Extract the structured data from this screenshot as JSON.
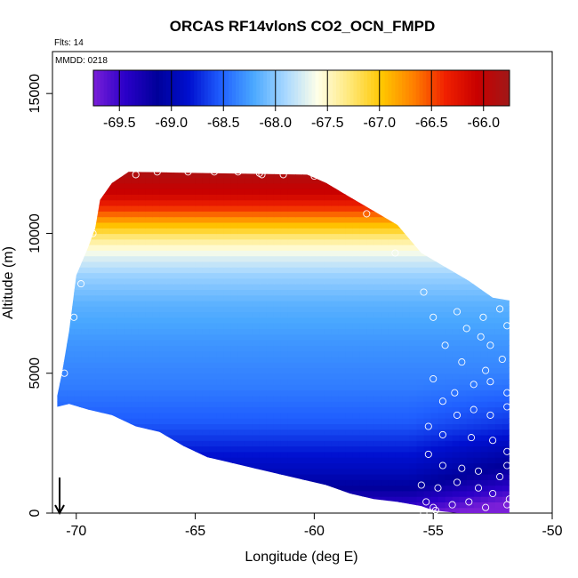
{
  "chart_data": {
    "type": "heatmap",
    "title": "ORCAS RF14vlonS CO2_OCN_FMPD",
    "annotations": {
      "flights": "Flts: 14",
      "date": "MMDD: 0218"
    },
    "xlabel": "Longitude (deg E)",
    "ylabel": "Altitude (m)",
    "xlim": [
      -71,
      -50
    ],
    "ylim": [
      0,
      16500
    ],
    "x_ticks": [
      -70,
      -65,
      -60,
      -55,
      -50
    ],
    "x_tick_labels": [
      "-70",
      "-65",
      "-60",
      "-55",
      "-50"
    ],
    "y_ticks": [
      0,
      5000,
      10000,
      15000
    ],
    "y_tick_labels": [
      "0",
      "5000",
      "10000",
      "15000"
    ],
    "colorbar": {
      "range": [
        -69.75,
        -65.75
      ],
      "ticks": [
        -69.5,
        -69.0,
        -68.5,
        -68.0,
        -67.5,
        -67.0,
        -66.5,
        -66.0
      ],
      "tick_labels": [
        "-69.5",
        "-69.0",
        "-68.5",
        "-68.0",
        "-67.5",
        "-67.0",
        "-66.5",
        "-66.0"
      ],
      "colors": [
        "#7a1fd8",
        "#2a00c8",
        "#00009a",
        "#0010d0",
        "#2060ff",
        "#4aa8ff",
        "#a8d8ff",
        "#ffffe8",
        "#ffe87a",
        "#ffc800",
        "#ff8000",
        "#f02000",
        "#c80000",
        "#a01818"
      ]
    },
    "value_vs_altitude": [
      {
        "alt": 0,
        "value": -69.6
      },
      {
        "alt": 500,
        "value": -69.35
      },
      {
        "alt": 1000,
        "value": -69.1
      },
      {
        "alt": 1500,
        "value": -68.95
      },
      {
        "alt": 2200,
        "value": -68.8
      },
      {
        "alt": 3200,
        "value": -68.55
      },
      {
        "alt": 4500,
        "value": -68.4
      },
      {
        "alt": 6000,
        "value": -68.3
      },
      {
        "alt": 7500,
        "value": -68.15
      },
      {
        "alt": 8500,
        "value": -67.95
      },
      {
        "alt": 9200,
        "value": -67.7
      },
      {
        "alt": 9800,
        "value": -67.35
      },
      {
        "alt": 10300,
        "value": -66.95
      },
      {
        "alt": 10800,
        "value": -66.5
      },
      {
        "alt": 11400,
        "value": -66.1
      },
      {
        "alt": 12200,
        "value": -65.85
      }
    ],
    "coverage_boundary": [
      [
        -70.8,
        3800
      ],
      [
        -70.3,
        3900
      ],
      [
        -69.5,
        3700
      ],
      [
        -68.5,
        3500
      ],
      [
        -67.5,
        3100
      ],
      [
        -66.5,
        2900
      ],
      [
        -65.5,
        2400
      ],
      [
        -64.5,
        2000
      ],
      [
        -63.5,
        1800
      ],
      [
        -62.5,
        1600
      ],
      [
        -61.5,
        1400
      ],
      [
        -60.5,
        1200
      ],
      [
        -59.5,
        1000
      ],
      [
        -58.5,
        700
      ],
      [
        -57.5,
        500
      ],
      [
        -56.5,
        400
      ],
      [
        -55.5,
        250
      ],
      [
        -55.0,
        100
      ],
      [
        -54.0,
        0
      ],
      [
        -51.8,
        0
      ],
      [
        -51.8,
        7600
      ],
      [
        -52.5,
        7700
      ],
      [
        -53.5,
        8300
      ],
      [
        -54.5,
        8800
      ],
      [
        -55.5,
        9300
      ],
      [
        -56.0,
        9800
      ],
      [
        -56.5,
        10300
      ],
      [
        -57.5,
        10800
      ],
      [
        -58.5,
        11300
      ],
      [
        -59.5,
        11800
      ],
      [
        -60.3,
        12100
      ],
      [
        -67.8,
        12200
      ],
      [
        -68.5,
        11800
      ],
      [
        -69.0,
        11200
      ],
      [
        -69.2,
        10200
      ],
      [
        -69.5,
        9500
      ],
      [
        -70.0,
        8500
      ],
      [
        -70.3,
        6500
      ],
      [
        -70.6,
        5000
      ],
      [
        -70.8,
        4200
      ]
    ],
    "observations": [
      [
        -68.6,
        11900
      ],
      [
        -67.5,
        12100
      ],
      [
        -66.6,
        12200
      ],
      [
        -65.3,
        12200
      ],
      [
        -64.2,
        12200
      ],
      [
        -63.2,
        12200
      ],
      [
        -62.3,
        12150
      ],
      [
        -62.2,
        12100
      ],
      [
        -61.3,
        12100
      ],
      [
        -60.0,
        12050
      ],
      [
        -58.6,
        12000
      ],
      [
        -57.8,
        10700
      ],
      [
        -56.6,
        9300
      ],
      [
        -69.3,
        10000
      ],
      [
        -69.8,
        8200
      ],
      [
        -70.1,
        7000
      ],
      [
        -70.5,
        5000
      ],
      [
        -55.4,
        7900
      ],
      [
        -55.0,
        7000
      ],
      [
        -54.0,
        7200
      ],
      [
        -53.6,
        6600
      ],
      [
        -52.9,
        7000
      ],
      [
        -52.2,
        7300
      ],
      [
        -51.9,
        6700
      ],
      [
        -54.5,
        6000
      ],
      [
        -53.0,
        6300
      ],
      [
        -52.6,
        6000
      ],
      [
        -52.1,
        5500
      ],
      [
        -53.8,
        5400
      ],
      [
        -52.8,
        5100
      ],
      [
        -51.9,
        4300
      ],
      [
        -52.6,
        4700
      ],
      [
        -53.3,
        4600
      ],
      [
        -54.1,
        4300
      ],
      [
        -55.0,
        4800
      ],
      [
        -54.6,
        4000
      ],
      [
        -54.0,
        3500
      ],
      [
        -53.3,
        3700
      ],
      [
        -52.6,
        3500
      ],
      [
        -51.9,
        3800
      ],
      [
        -55.2,
        3100
      ],
      [
        -54.6,
        2800
      ],
      [
        -53.4,
        2700
      ],
      [
        -52.5,
        2600
      ],
      [
        -51.9,
        2200
      ],
      [
        -55.2,
        2100
      ],
      [
        -54.6,
        1700
      ],
      [
        -53.8,
        1600
      ],
      [
        -53.1,
        1500
      ],
      [
        -52.2,
        1300
      ],
      [
        -51.9,
        1700
      ],
      [
        -55.5,
        1000
      ],
      [
        -54.8,
        900
      ],
      [
        -54.0,
        1100
      ],
      [
        -53.1,
        900
      ],
      [
        -52.5,
        700
      ],
      [
        -51.8,
        500
      ],
      [
        -55.3,
        400
      ],
      [
        -55.0,
        200
      ],
      [
        -54.2,
        300
      ],
      [
        -53.5,
        400
      ],
      [
        -52.8,
        200
      ],
      [
        -51.9,
        300
      ],
      [
        -55.4,
        0
      ],
      [
        -54.9,
        100
      ]
    ],
    "arrow": {
      "lon": -70.7,
      "alt_from": 700,
      "alt_to": 0
    }
  }
}
